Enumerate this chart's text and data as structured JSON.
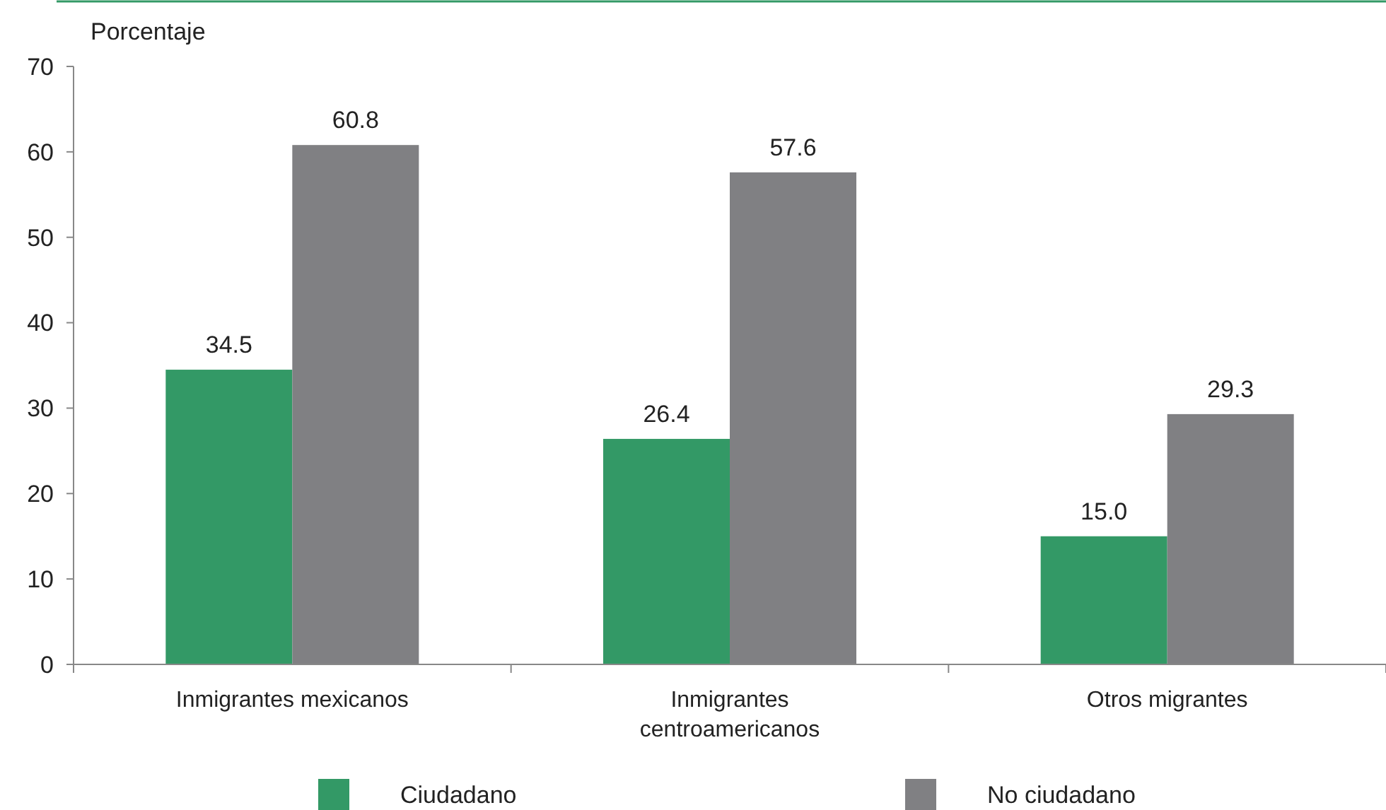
{
  "chart_data": {
    "type": "bar",
    "ylabel": "Porcentaje",
    "categories": [
      "Inmigrantes mexicanos",
      "Inmigrantes centroamericanos",
      "Otros migrantes"
    ],
    "series": [
      {
        "name": "Ciudadano",
        "color": "#339966",
        "values": [
          34.5,
          26.4,
          15.0
        ]
      },
      {
        "name": "No ciudadano",
        "color": "#808083",
        "values": [
          60.8,
          57.6,
          29.3
        ]
      }
    ],
    "value_labels": [
      [
        "34.5",
        "26.4",
        "15.0"
      ],
      [
        "60.8",
        "57.6",
        "29.3"
      ]
    ],
    "ylim": [
      0,
      70
    ],
    "yticks": [
      0,
      10,
      20,
      30,
      40,
      50,
      60,
      70
    ],
    "grid": false,
    "legend": "bottom"
  }
}
